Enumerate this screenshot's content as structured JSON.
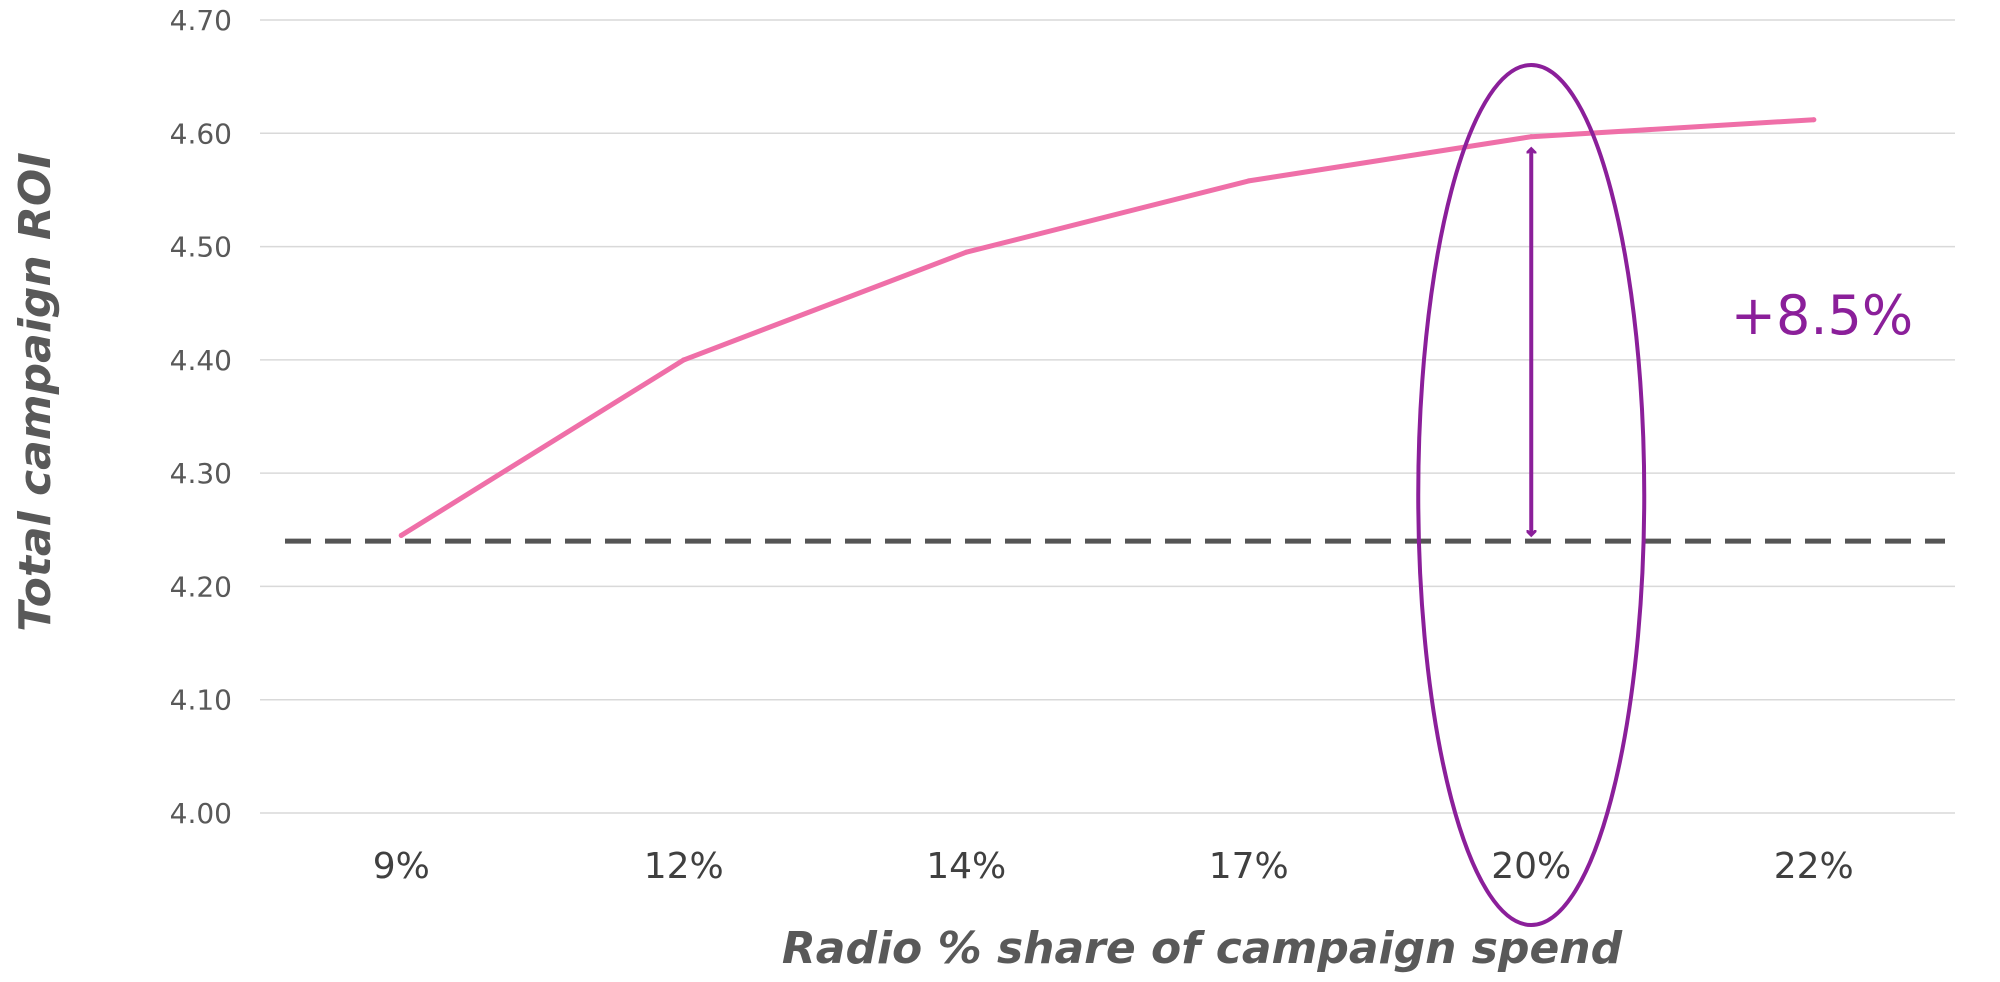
{
  "chart_data": {
    "type": "line",
    "title": "",
    "xlabel": "Radio % share of campaign spend",
    "ylabel": "Total campaign ROI",
    "categories": [
      "9%",
      "12%",
      "14%",
      "17%",
      "20%",
      "22%"
    ],
    "series": [
      {
        "values": [
          4.245,
          4.4,
          4.495,
          4.558,
          4.597,
          4.612
        ],
        "color": "#EF6FA8"
      }
    ],
    "yticks": [
      "4.00",
      "4.10",
      "4.20",
      "4.30",
      "4.40",
      "4.50",
      "4.60",
      "4.70"
    ],
    "ylim": [
      4.0,
      4.7
    ],
    "grid": true,
    "legend": "none",
    "reference_line": {
      "value": 4.24,
      "style": "dashed",
      "color": "#555555"
    },
    "annotation": {
      "text": "+8.5%",
      "category": "20%",
      "from_value": 4.24,
      "to_value": 4.597,
      "highlight": "ellipse",
      "color": "#8B1F9A"
    }
  }
}
